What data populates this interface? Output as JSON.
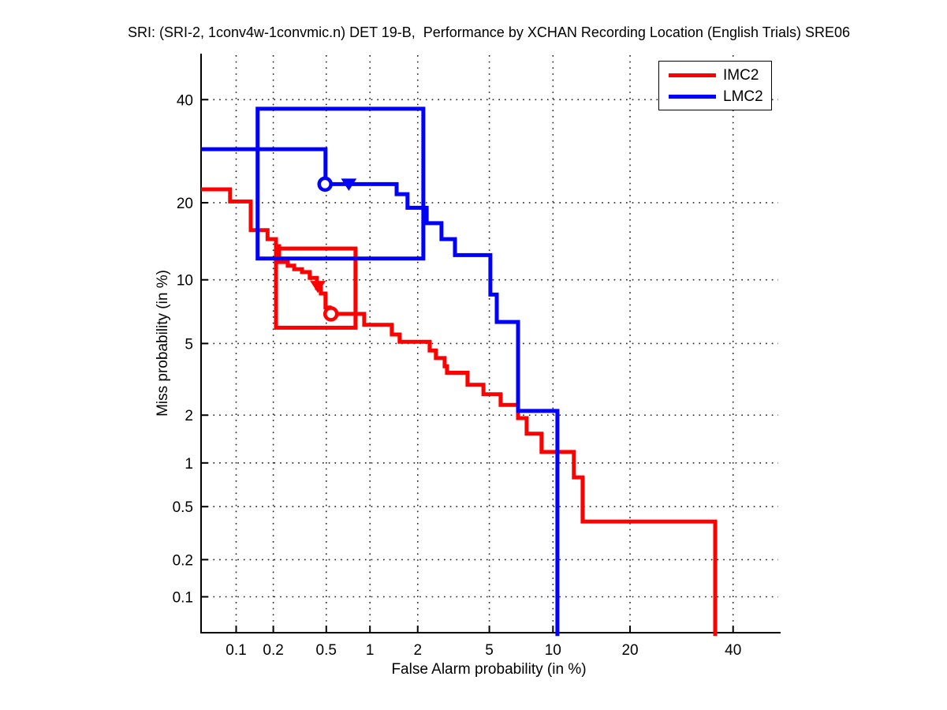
{
  "chart_data": {
    "type": "line",
    "variant": "DET curve (stepped, probit-probit axes)",
    "title": "SRI: (SRI-2, 1conv4w-1convmic.n) DET 19-B,  Performance by XCHAN Recording Location (English Trials) SRE06",
    "xlabel": "False Alarm probability (in %)",
    "ylabel": "Miss probability (in %)",
    "x_scale": "probit",
    "y_scale": "probit",
    "xlim": [
      0.05,
      50
    ],
    "ylim": [
      0.05,
      50
    ],
    "x_ticks": [
      0.1,
      0.2,
      0.5,
      1,
      2,
      5,
      10,
      20,
      40
    ],
    "y_ticks": [
      0.1,
      0.2,
      0.5,
      1,
      2,
      5,
      10,
      20,
      40
    ],
    "x_tick_labels": [
      "0.1",
      "0.2",
      "0.5",
      "1",
      "2",
      "5",
      "10",
      "20",
      "40"
    ],
    "y_tick_labels": [
      "0.1",
      "0.2",
      "0.5",
      "1",
      "2",
      "5",
      "10",
      "20",
      "40"
    ],
    "grid": "dotted",
    "axis_color": "#000000",
    "legend": {
      "position": "top-right",
      "entries": [
        "IMC2",
        "LMC2"
      ]
    },
    "series": [
      {
        "name": "IMC2",
        "color": "#ff0000",
        "points": [
          [
            0.05,
            22.2
          ],
          [
            0.089,
            22.2
          ],
          [
            0.089,
            20.2
          ],
          [
            0.132,
            20.2
          ],
          [
            0.132,
            15.9
          ],
          [
            0.18,
            15.9
          ],
          [
            0.18,
            14.7
          ],
          [
            0.21,
            14.7
          ],
          [
            0.21,
            13.8
          ],
          [
            0.222,
            13.8
          ],
          [
            0.222,
            11.9
          ],
          [
            0.259,
            11.9
          ],
          [
            0.259,
            11.5
          ],
          [
            0.29,
            11.5
          ],
          [
            0.29,
            11.1
          ],
          [
            0.332,
            11.1
          ],
          [
            0.332,
            10.8
          ],
          [
            0.379,
            10.8
          ],
          [
            0.379,
            10.2
          ],
          [
            0.428,
            10.2
          ],
          [
            0.428,
            9.2
          ],
          [
            0.457,
            9.2
          ],
          [
            0.457,
            8.7
          ],
          [
            0.494,
            8.7
          ],
          [
            0.494,
            7.5
          ],
          [
            0.529,
            7.5
          ],
          [
            0.529,
            7.0
          ],
          [
            0.916,
            7.0
          ],
          [
            0.916,
            6.2
          ],
          [
            1.385,
            6.2
          ],
          [
            1.385,
            5.55
          ],
          [
            1.55,
            5.55
          ],
          [
            1.55,
            5.1
          ],
          [
            2.355,
            5.1
          ],
          [
            2.355,
            4.6
          ],
          [
            2.56,
            4.6
          ],
          [
            2.56,
            4.2
          ],
          [
            2.87,
            4.2
          ],
          [
            2.87,
            3.8
          ],
          [
            2.96,
            3.8
          ],
          [
            2.96,
            3.5
          ],
          [
            3.84,
            3.5
          ],
          [
            3.84,
            3.0
          ],
          [
            4.66,
            3.0
          ],
          [
            4.66,
            2.65
          ],
          [
            5.7,
            2.65
          ],
          [
            5.7,
            2.3
          ],
          [
            6.93,
            2.3
          ],
          [
            6.93,
            1.92
          ],
          [
            7.61,
            1.92
          ],
          [
            7.61,
            1.54
          ],
          [
            8.9,
            1.54
          ],
          [
            8.9,
            1.18
          ],
          [
            12.26,
            1.18
          ],
          [
            12.26,
            0.8
          ],
          [
            13.3,
            0.8
          ],
          [
            13.3,
            0.39
          ],
          [
            36.1,
            0.39
          ],
          [
            36.1,
            0.046
          ]
        ],
        "box": {
          "fa": [
            0.21,
            0.8
          ],
          "miss": [
            6.0,
            13.5
          ]
        },
        "markers": [
          {
            "shape": "triangle-down",
            "fa": 0.435,
            "miss": 9.35
          },
          {
            "shape": "circle",
            "fa": 0.54,
            "miss": 7.0
          }
        ]
      },
      {
        "name": "LMC2",
        "color": "#0000ff",
        "points": [
          [
            0.05,
            29.6
          ],
          [
            0.494,
            29.6
          ],
          [
            0.494,
            23.1
          ],
          [
            1.485,
            23.1
          ],
          [
            1.485,
            21.4
          ],
          [
            1.735,
            21.4
          ],
          [
            1.735,
            19.2
          ],
          [
            2.26,
            19.2
          ],
          [
            2.26,
            16.9
          ],
          [
            2.755,
            16.9
          ],
          [
            2.755,
            14.7
          ],
          [
            3.28,
            14.7
          ],
          [
            3.28,
            12.7
          ],
          [
            5.06,
            12.7
          ],
          [
            5.06,
            8.6
          ],
          [
            5.45,
            8.6
          ],
          [
            5.45,
            6.4
          ],
          [
            6.93,
            6.4
          ],
          [
            6.93,
            2.12
          ],
          [
            10.45,
            2.12
          ],
          [
            10.45,
            0.046
          ]
        ],
        "box": {
          "fa": [
            0.15,
            2.16
          ],
          "miss": [
            12.3,
            38.0
          ]
        },
        "markers": [
          {
            "shape": "circle",
            "fa": 0.49,
            "miss": 23.1
          },
          {
            "shape": "triangle-down",
            "fa": 0.72,
            "miss": 23.1
          }
        ]
      }
    ]
  }
}
